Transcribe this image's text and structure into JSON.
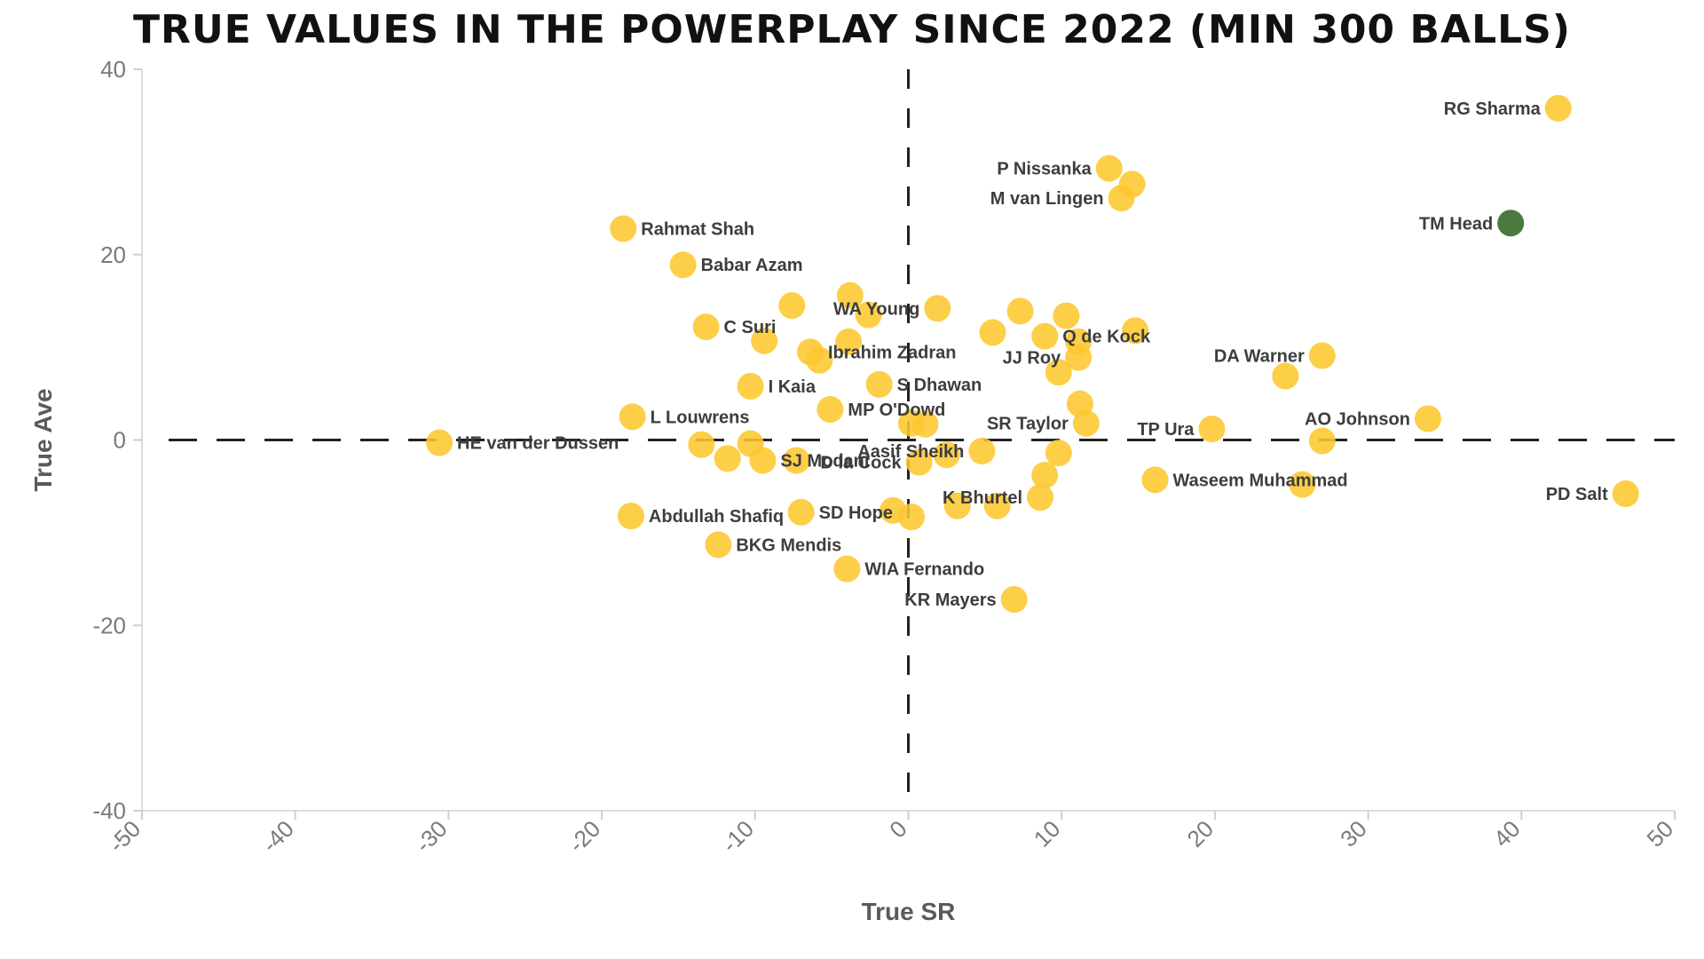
{
  "chart_data": {
    "type": "scatter",
    "title": "True Values in the Powerplay since 2022 (min 300 balls)",
    "xlabel": "True SR",
    "ylabel": "True Ave",
    "xlim": [
      -50,
      50
    ],
    "ylim": [
      -40,
      40
    ],
    "xticks": [
      -50,
      -40,
      -30,
      -20,
      -10,
      0,
      10,
      20,
      30,
      40,
      50
    ],
    "yticks": [
      40,
      20,
      0,
      -20,
      -40
    ],
    "grid": false,
    "reference_lines": {
      "x": 0,
      "y": 0,
      "style": "dashed"
    },
    "colors": {
      "default": "#fdc72f",
      "highlight": "#4b7a3f"
    },
    "points": [
      {
        "x": 42.4,
        "y": 35.8,
        "label": "RG Sharma",
        "side": "left"
      },
      {
        "x": 39.3,
        "y": 23.4,
        "label": "TM Head",
        "side": "left",
        "highlight": true
      },
      {
        "x": 13.1,
        "y": 29.3,
        "label": "P Nissanka",
        "side": "left"
      },
      {
        "x": 14.6,
        "y": 27.6,
        "label": "",
        "side": "left"
      },
      {
        "x": 13.9,
        "y": 26.1,
        "label": "M van Lingen",
        "side": "left"
      },
      {
        "x": -18.6,
        "y": 22.8,
        "label": "Rahmat Shah",
        "side": "right"
      },
      {
        "x": -14.7,
        "y": 18.9,
        "label": "Babar Azam",
        "side": "right"
      },
      {
        "x": -7.6,
        "y": 14.5,
        "label": "",
        "side": "right"
      },
      {
        "x": -3.8,
        "y": 15.6,
        "label": "",
        "side": "right"
      },
      {
        "x": -2.6,
        "y": 13.5,
        "label": "",
        "side": "right"
      },
      {
        "x": 1.9,
        "y": 14.2,
        "label": "WA Young",
        "side": "left"
      },
      {
        "x": 7.3,
        "y": 13.9,
        "label": "",
        "side": "right"
      },
      {
        "x": 10.3,
        "y": 13.4,
        "label": "",
        "side": "right"
      },
      {
        "x": -13.2,
        "y": 12.2,
        "label": "C Suri",
        "side": "right"
      },
      {
        "x": -9.4,
        "y": 10.7,
        "label": "",
        "side": "right"
      },
      {
        "x": -3.9,
        "y": 10.6,
        "label": "",
        "side": "right"
      },
      {
        "x": 5.5,
        "y": 11.6,
        "label": "",
        "side": "right"
      },
      {
        "x": 8.9,
        "y": 11.2,
        "label": "Q de Kock",
        "side": "right"
      },
      {
        "x": 14.8,
        "y": 11.8,
        "label": "",
        "side": "right"
      },
      {
        "x": 11.1,
        "y": 10.6,
        "label": "",
        "side": "right"
      },
      {
        "x": -6.4,
        "y": 9.5,
        "label": "Ibrahim Zadran",
        "side": "right"
      },
      {
        "x": -5.8,
        "y": 8.6,
        "label": "",
        "side": "right"
      },
      {
        "x": 11.1,
        "y": 8.9,
        "label": "JJ Roy",
        "side": "left"
      },
      {
        "x": 27.0,
        "y": 9.1,
        "label": "DA Warner",
        "side": "left"
      },
      {
        "x": 9.8,
        "y": 7.3,
        "label": "",
        "side": "right"
      },
      {
        "x": 24.6,
        "y": 6.9,
        "label": "",
        "side": "right"
      },
      {
        "x": -10.3,
        "y": 5.8,
        "label": "I Kaia",
        "side": "right"
      },
      {
        "x": -1.9,
        "y": 6.0,
        "label": "S Dhawan",
        "side": "right"
      },
      {
        "x": 11.2,
        "y": 3.9,
        "label": "",
        "side": "right"
      },
      {
        "x": -5.1,
        "y": 3.3,
        "label": "MP O'Dowd",
        "side": "right"
      },
      {
        "x": 0.2,
        "y": 1.8,
        "label": "",
        "side": "right"
      },
      {
        "x": 1.1,
        "y": 1.7,
        "label": "",
        "side": "right"
      },
      {
        "x": 11.6,
        "y": 1.8,
        "label": "SR Taylor",
        "side": "left"
      },
      {
        "x": 19.8,
        "y": 1.2,
        "label": "TP Ura",
        "side": "left"
      },
      {
        "x": 33.9,
        "y": 2.3,
        "label": "AO Johnson",
        "side": "left"
      },
      {
        "x": -18.0,
        "y": 2.5,
        "label": "L Louwrens",
        "side": "right"
      },
      {
        "x": -30.6,
        "y": -0.3,
        "label": "HE van der Dussen",
        "side": "right"
      },
      {
        "x": -13.5,
        "y": -0.5,
        "label": "",
        "side": "right"
      },
      {
        "x": -10.3,
        "y": -0.4,
        "label": "",
        "side": "right"
      },
      {
        "x": -11.8,
        "y": -2.0,
        "label": "",
        "side": "right"
      },
      {
        "x": -9.5,
        "y": -2.2,
        "label": "SJ Modani",
        "side": "right"
      },
      {
        "x": -7.3,
        "y": -2.2,
        "label": "",
        "side": "right"
      },
      {
        "x": 0.7,
        "y": -2.4,
        "label": "D la Cock",
        "side": "left"
      },
      {
        "x": 2.5,
        "y": -1.6,
        "label": "",
        "side": "right"
      },
      {
        "x": 4.8,
        "y": -1.2,
        "label": "Aasif Sheikh",
        "side": "left"
      },
      {
        "x": 9.8,
        "y": -1.4,
        "label": "",
        "side": "right"
      },
      {
        "x": 27.0,
        "y": -0.1,
        "label": "",
        "side": "right"
      },
      {
        "x": 8.9,
        "y": -3.8,
        "label": "",
        "side": "right"
      },
      {
        "x": 16.1,
        "y": -4.3,
        "label": "Waseem Muhammad",
        "side": "right"
      },
      {
        "x": 25.7,
        "y": -4.8,
        "label": "",
        "side": "right"
      },
      {
        "x": 46.8,
        "y": -5.8,
        "label": "PD Salt",
        "side": "left"
      },
      {
        "x": 8.6,
        "y": -6.2,
        "label": "K Bhurtel",
        "side": "left"
      },
      {
        "x": 3.2,
        "y": -7.1,
        "label": "",
        "side": "right"
      },
      {
        "x": 5.8,
        "y": -7.1,
        "label": "",
        "side": "right"
      },
      {
        "x": -18.1,
        "y": -8.2,
        "label": "Abdullah Shafiq",
        "side": "right"
      },
      {
        "x": -7.0,
        "y": -7.8,
        "label": "SD Hope",
        "side": "right"
      },
      {
        "x": -1.0,
        "y": -7.6,
        "label": "",
        "side": "right"
      },
      {
        "x": 0.2,
        "y": -8.3,
        "label": "",
        "side": "right"
      },
      {
        "x": -12.4,
        "y": -11.3,
        "label": "BKG Mendis",
        "side": "right"
      },
      {
        "x": -4.0,
        "y": -13.9,
        "label": "WIA Fernando",
        "side": "right"
      },
      {
        "x": 6.9,
        "y": -17.2,
        "label": "KR Mayers",
        "side": "left"
      }
    ]
  }
}
